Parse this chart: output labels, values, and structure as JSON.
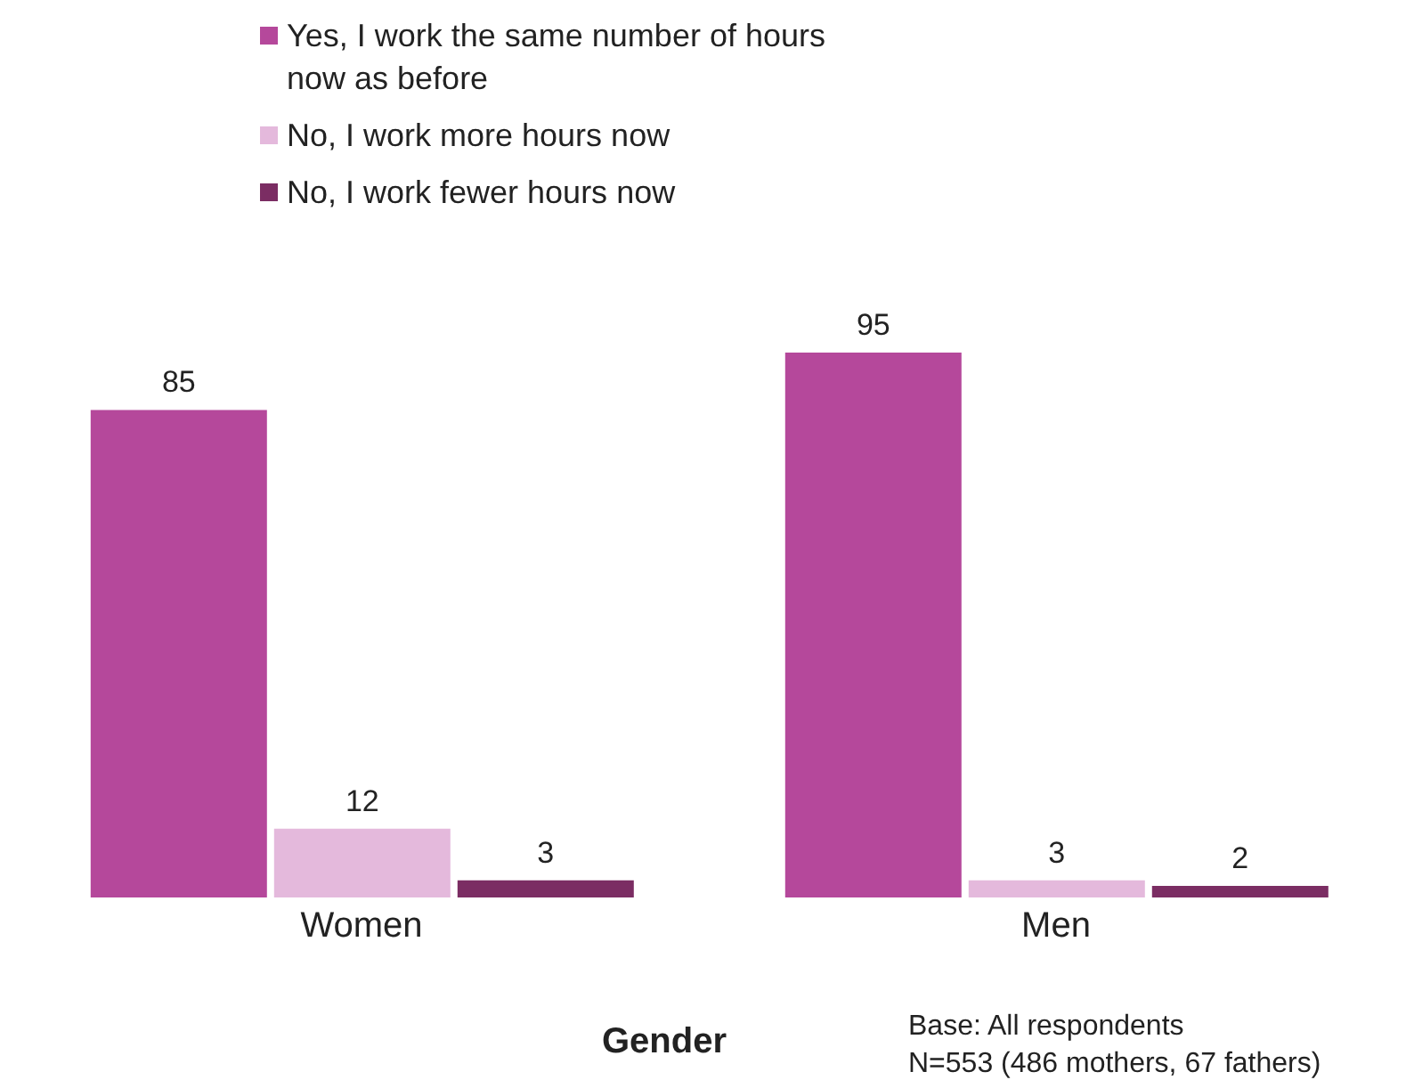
{
  "chart_data": {
    "type": "bar",
    "categories": [
      "Women",
      "Men"
    ],
    "series": [
      {
        "name": "Yes, I work the same number of hours now as before",
        "color": "#b5489b",
        "values": [
          85,
          95
        ]
      },
      {
        "name": "No, I work more hours now",
        "color": "#e4b9dc",
        "values": [
          12,
          3
        ]
      },
      {
        "name": "No, I work fewer hours now",
        "color": "#7b2d63",
        "values": [
          3,
          2
        ]
      }
    ],
    "xlabel": "Gender",
    "data_labels": true,
    "legend": "top",
    "grid": false,
    "annotations": [
      "Base: All respondents",
      "N=553 (486 mothers, 67 fathers)"
    ]
  }
}
